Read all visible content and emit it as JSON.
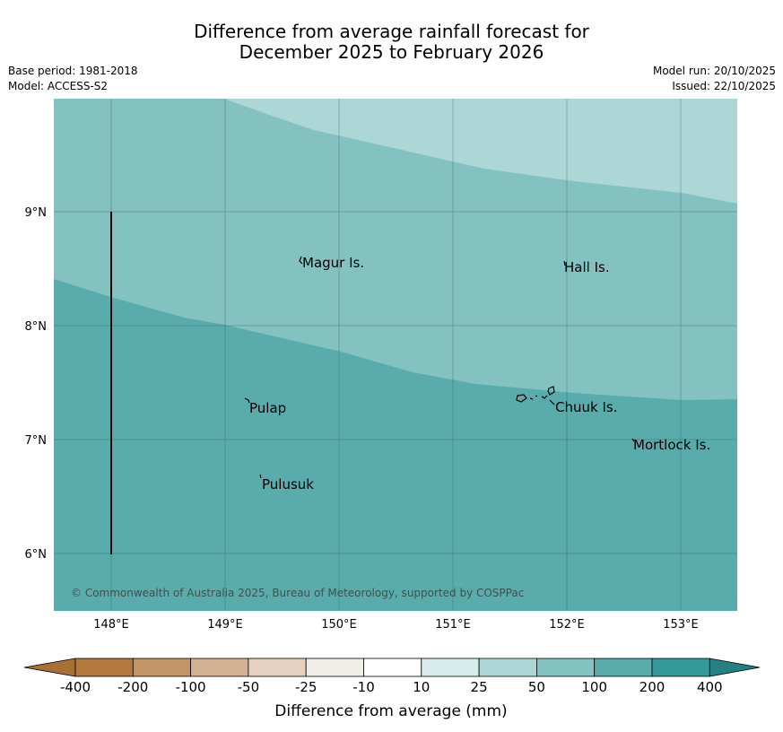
{
  "title": {
    "line1": "Difference from average rainfall forecast for",
    "line2": "December 2025 to February 2026"
  },
  "meta": {
    "base_period": "Base period: 1981-2018",
    "model": "Model: ACCESS-S2",
    "model_run": "Model run: 20/10/2025",
    "issued": "Issued: 22/10/2025"
  },
  "map": {
    "lon_range": [
      147.5,
      153.5
    ],
    "lat_range": [
      5.5,
      10.0
    ],
    "lon_ticks": [
      "148°E",
      "149°E",
      "150°E",
      "151°E",
      "152°E",
      "153°E"
    ],
    "lat_ticks": [
      "9°N",
      "8°N",
      "7°N",
      "6°N"
    ],
    "places": [
      {
        "name": "Magur Is.",
        "lon": 149.7,
        "lat": 8.55
      },
      {
        "name": "Hall Is.",
        "lon": 151.98,
        "lat": 8.5
      },
      {
        "name": "Pulap",
        "lon": 149.2,
        "lat": 7.28
      },
      {
        "name": "Chuuk Is.",
        "lon": 151.9,
        "lat": 7.29
      },
      {
        "name": "Mortlock Is.",
        "lon": 152.58,
        "lat": 6.96
      },
      {
        "name": "Pulusuk",
        "lon": 149.33,
        "lat": 6.61
      }
    ],
    "copyright": "© Commonwealth of Australia 2025, Bureau of Meteorology, supported by COSPPac",
    "zone_colors": {
      "100_200": "#5aacac",
      "50_100": "#84c2c2",
      "25_50": "#add7d7"
    }
  },
  "legend": {
    "title": "Difference from average (mm)",
    "labels": [
      "-400",
      "-200",
      "-100",
      "-50",
      "-25",
      "-10",
      "10",
      "25",
      "50",
      "100",
      "200",
      "400"
    ],
    "colors": [
      "#a87035",
      "#b37a40",
      "#c29568",
      "#d1b293",
      "#e4d1bf",
      "#f1eeea",
      "#ffffff",
      "#d7ecec",
      "#add7d7",
      "#84c2c2",
      "#5aacac",
      "#35999a",
      "#267f80"
    ]
  }
}
